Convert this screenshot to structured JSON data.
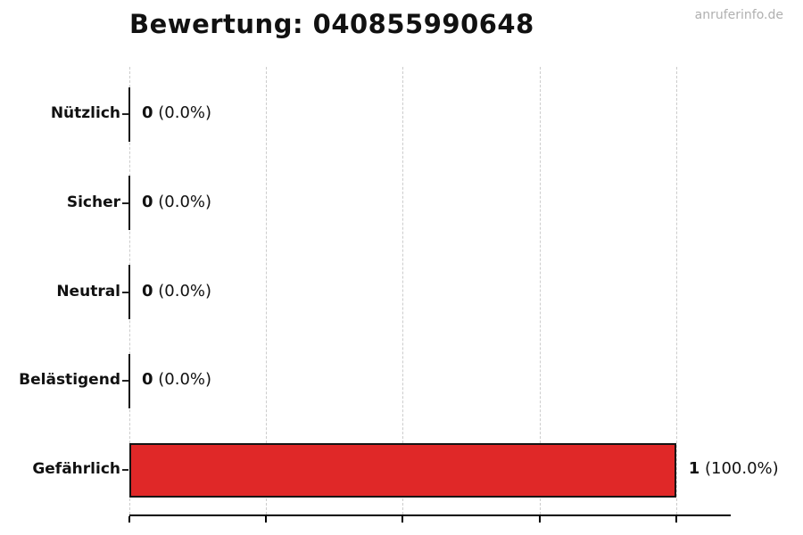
{
  "watermark": "anruferinfo.de",
  "chart_data": {
    "type": "bar",
    "orientation": "horizontal",
    "title": "Bewertung: 040855990648",
    "categories": [
      "Nützlich",
      "Sicher",
      "Neutral",
      "Belästigend",
      "Gefährlich"
    ],
    "values": [
      0,
      0,
      0,
      0,
      1
    ],
    "percent_labels": [
      "(0.0%)",
      "(0.0%)",
      "(0.0%)",
      "(0.0%)",
      "(100.0%)"
    ],
    "value_label_texts": [
      "0 (0.0%)",
      "0 (0.0%)",
      "0 (0.0%)",
      "0 (0.0%)",
      "1 (100.0%)"
    ],
    "xlabel": "",
    "ylabel": "",
    "xlim": [
      0,
      1.1
    ],
    "xticks": [
      0,
      0.25,
      0.5,
      0.75,
      1.0
    ],
    "xtick_labels_visible": false,
    "grid": "vertical-dashed",
    "legend": "none",
    "bar_color": "#e02828",
    "bar_edge_color": "#141414",
    "grid_color": "#cccccc",
    "text_color": "#111111",
    "watermark_color": "#b0b0b0"
  }
}
